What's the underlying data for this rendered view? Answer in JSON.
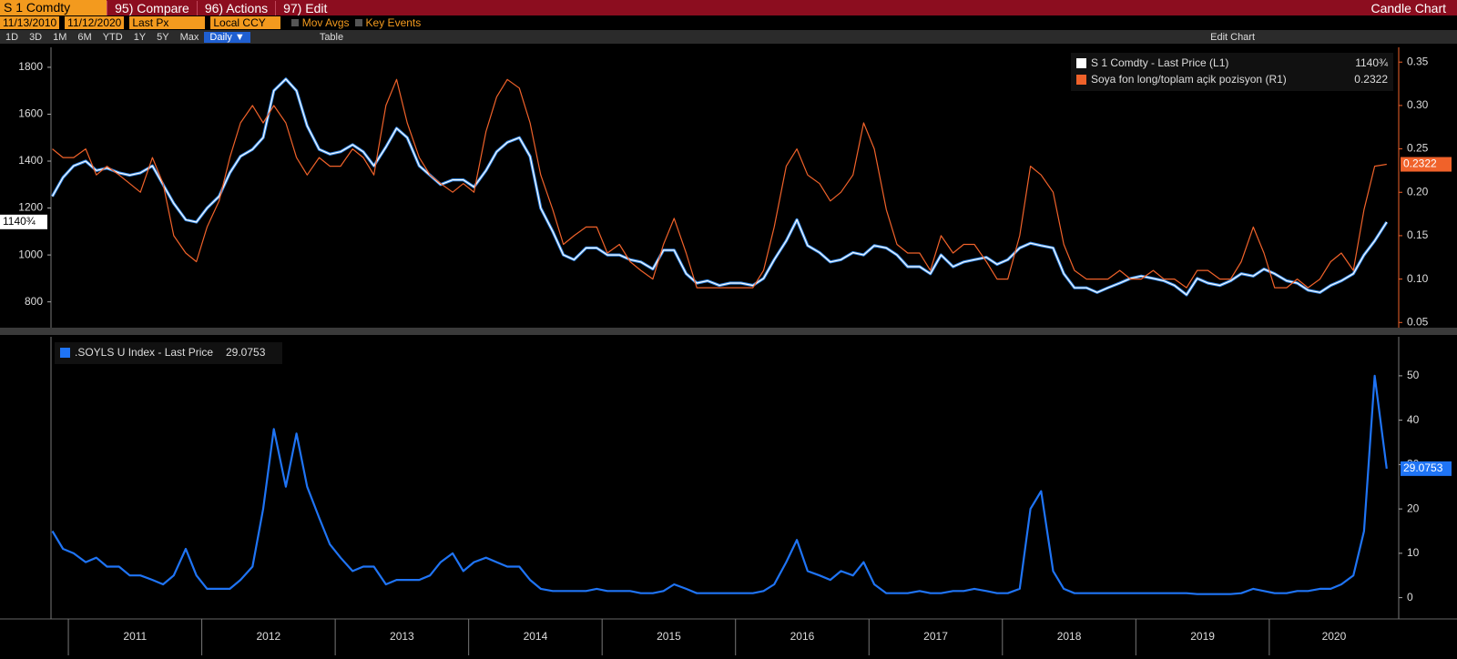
{
  "ui": {
    "security": "S 1 Comdty",
    "menu": [
      "95) Compare",
      "96) Actions",
      "97) Edit"
    ],
    "chart_kind": "Candle Chart",
    "start_date": "11/13/2010",
    "end_date": "11/12/2020",
    "field": "Last Px",
    "currency": "Local CCY",
    "options": [
      "Mov Avgs",
      "Key Events"
    ],
    "periods": [
      "1D",
      "3D",
      "1M",
      "6M",
      "YTD",
      "1Y",
      "5Y",
      "Max"
    ],
    "frequency": "Daily ▼",
    "table": "Table",
    "edit_chart": "Edit Chart"
  },
  "chart_data": [
    {
      "type": "line",
      "yaxis_position": "left",
      "legend": "upper right",
      "x": [
        2010.88,
        2010.96,
        2011.04,
        2011.13,
        2011.21,
        2011.29,
        2011.38,
        2011.46,
        2011.54,
        2011.63,
        2011.71,
        2011.79,
        2011.88,
        2011.96,
        2012.04,
        2012.13,
        2012.21,
        2012.29,
        2012.38,
        2012.46,
        2012.54,
        2012.63,
        2012.71,
        2012.79,
        2012.88,
        2012.96,
        2013.04,
        2013.13,
        2013.21,
        2013.29,
        2013.38,
        2013.46,
        2013.54,
        2013.63,
        2013.71,
        2013.79,
        2013.88,
        2013.96,
        2014.04,
        2014.13,
        2014.21,
        2014.29,
        2014.38,
        2014.46,
        2014.54,
        2014.63,
        2014.71,
        2014.79,
        2014.88,
        2014.96,
        2015.04,
        2015.13,
        2015.21,
        2015.29,
        2015.38,
        2015.46,
        2015.54,
        2015.63,
        2015.71,
        2015.79,
        2015.88,
        2015.96,
        2016.04,
        2016.13,
        2016.21,
        2016.29,
        2016.38,
        2016.46,
        2016.54,
        2016.63,
        2016.71,
        2016.79,
        2016.88,
        2016.96,
        2017.04,
        2017.13,
        2017.21,
        2017.29,
        2017.38,
        2017.46,
        2017.54,
        2017.63,
        2017.71,
        2017.79,
        2017.88,
        2017.96,
        2018.04,
        2018.13,
        2018.21,
        2018.29,
        2018.38,
        2018.46,
        2018.54,
        2018.63,
        2018.71,
        2018.79,
        2018.88,
        2018.96,
        2019.04,
        2019.13,
        2019.21,
        2019.29,
        2019.38,
        2019.46,
        2019.54,
        2019.63,
        2019.71,
        2019.79,
        2019.88,
        2019.96,
        2020.04,
        2020.13,
        2020.21,
        2020.29,
        2020.38,
        2020.46,
        2020.54,
        2020.63,
        2020.71,
        2020.79,
        2020.88
      ],
      "xlim": [
        2010.87,
        2020.97
      ],
      "ylim": [
        690,
        1885
      ],
      "yticks": [
        800,
        1000,
        1200,
        1400,
        1600,
        1800
      ],
      "y2lim": [
        0.044,
        0.367
      ],
      "y2ticks": [
        0.05,
        {
          "value": 0.1,
          "label": "0.10"
        },
        0.15,
        {
          "value": 0.2,
          "label": "0.20"
        },
        0.25,
        {
          "value": 0.3,
          "label": "0.30"
        },
        0.35
      ],
      "series": [
        {
          "name": "S 1 Comdty - Last Price (L1)",
          "color": "#ffffff",
          "outline": "#3b8eea",
          "axis": "y",
          "last": {
            "value": 1140.75,
            "label": "1140¾"
          },
          "values": [
            1250,
            1330,
            1380,
            1400,
            1360,
            1370,
            1350,
            1340,
            1350,
            1380,
            1300,
            1220,
            1150,
            1140,
            1200,
            1250,
            1350,
            1420,
            1450,
            1500,
            1700,
            1750,
            1700,
            1550,
            1450,
            1430,
            1440,
            1470,
            1440,
            1380,
            1460,
            1540,
            1500,
            1380,
            1340,
            1300,
            1320,
            1320,
            1290,
            1360,
            1440,
            1480,
            1500,
            1420,
            1200,
            1100,
            1000,
            980,
            1030,
            1030,
            1000,
            1000,
            980,
            970,
            940,
            1020,
            1020,
            920,
            880,
            890,
            870,
            880,
            880,
            870,
            900,
            980,
            1060,
            1150,
            1040,
            1010,
            970,
            980,
            1010,
            1000,
            1040,
            1030,
            1000,
            950,
            950,
            920,
            1000,
            950,
            970,
            980,
            990,
            960,
            980,
            1030,
            1050,
            1040,
            1030,
            920,
            860,
            860,
            840,
            860,
            880,
            900,
            910,
            900,
            890,
            870,
            830,
            900,
            880,
            870,
            890,
            920,
            910,
            940,
            920,
            890,
            880,
            850,
            840,
            870,
            890,
            920,
            1000,
            1060,
            1140
          ]
        },
        {
          "name": "Soya fon long/toplam açik pozisyon (R1)",
          "color": "#f0622a",
          "axis": "y2",
          "values": [
            0.25,
            0.24,
            0.24,
            0.25,
            0.22,
            0.23,
            0.22,
            0.21,
            0.2,
            0.24,
            0.21,
            0.15,
            0.13,
            0.12,
            0.16,
            0.19,
            0.24,
            0.28,
            0.3,
            0.28,
            0.3,
            0.28,
            0.24,
            0.22,
            0.24,
            0.23,
            0.23,
            0.25,
            0.24,
            0.22,
            0.3,
            0.33,
            0.28,
            0.24,
            0.22,
            0.21,
            0.2,
            0.21,
            0.2,
            0.27,
            0.31,
            0.33,
            0.32,
            0.28,
            0.22,
            0.18,
            0.14,
            0.15,
            0.16,
            0.16,
            0.13,
            0.14,
            0.12,
            0.11,
            0.1,
            0.14,
            0.17,
            0.13,
            0.09,
            0.09,
            0.09,
            0.09,
            0.09,
            0.09,
            0.11,
            0.16,
            0.23,
            0.25,
            0.22,
            0.21,
            0.19,
            0.2,
            0.22,
            0.28,
            0.25,
            0.18,
            0.14,
            0.13,
            0.13,
            0.11,
            0.15,
            0.13,
            0.14,
            0.14,
            0.12,
            0.1,
            0.1,
            0.15,
            0.23,
            0.22,
            0.2,
            0.14,
            0.11,
            0.1,
            0.1,
            0.1,
            0.11,
            0.1,
            0.1,
            0.11,
            0.1,
            0.1,
            0.09,
            0.11,
            0.11,
            0.1,
            0.1,
            0.12,
            0.16,
            0.13,
            0.09,
            0.09,
            0.1,
            0.09,
            0.1,
            0.12,
            0.13,
            0.11,
            0.18,
            0.23,
            0.2322
          ]
        }
      ]
    },
    {
      "type": "line",
      "yaxis_position": "right",
      "legend": "upper left",
      "x": [
        2010.88,
        2010.96,
        2011.04,
        2011.13,
        2011.21,
        2011.29,
        2011.38,
        2011.46,
        2011.54,
        2011.63,
        2011.71,
        2011.79,
        2011.88,
        2011.96,
        2012.04,
        2012.13,
        2012.21,
        2012.29,
        2012.38,
        2012.46,
        2012.54,
        2012.63,
        2012.71,
        2012.79,
        2012.88,
        2012.96,
        2013.04,
        2013.13,
        2013.21,
        2013.29,
        2013.38,
        2013.46,
        2013.54,
        2013.63,
        2013.71,
        2013.79,
        2013.88,
        2013.96,
        2014.04,
        2014.13,
        2014.21,
        2014.29,
        2014.38,
        2014.46,
        2014.54,
        2014.63,
        2014.71,
        2014.79,
        2014.88,
        2014.96,
        2015.04,
        2015.13,
        2015.21,
        2015.29,
        2015.38,
        2015.46,
        2015.54,
        2015.63,
        2015.71,
        2015.79,
        2015.88,
        2015.96,
        2016.04,
        2016.13,
        2016.21,
        2016.29,
        2016.38,
        2016.46,
        2016.54,
        2016.63,
        2016.71,
        2016.79,
        2016.88,
        2016.96,
        2017.04,
        2017.13,
        2017.21,
        2017.29,
        2017.38,
        2017.46,
        2017.54,
        2017.63,
        2017.71,
        2017.79,
        2017.88,
        2017.96,
        2018.04,
        2018.13,
        2018.21,
        2018.29,
        2018.38,
        2018.46,
        2018.54,
        2018.63,
        2018.71,
        2018.79,
        2018.88,
        2018.96,
        2019.04,
        2019.13,
        2019.21,
        2019.29,
        2019.38,
        2019.46,
        2019.54,
        2019.63,
        2019.71,
        2019.79,
        2019.88,
        2019.96,
        2020.04,
        2020.13,
        2020.21,
        2020.29,
        2020.38,
        2020.46,
        2020.54,
        2020.63,
        2020.71,
        2020.79,
        2020.88
      ],
      "xlim": [
        2010.87,
        2020.97
      ],
      "xticks": [
        2011,
        2012,
        2013,
        2014,
        2015,
        2016,
        2017,
        2018,
        2019,
        2020
      ],
      "ylim": [
        -4.8,
        58.8
      ],
      "yticks": [
        0,
        10,
        20,
        30,
        40,
        50
      ],
      "series": [
        {
          "name": ".SOYLS U Index - Last Price",
          "color": "#1f74f5",
          "axis": "y",
          "values": [
            15,
            11,
            10,
            8,
            9,
            7,
            7,
            5,
            5,
            4,
            3,
            5,
            11,
            5,
            2,
            2,
            2,
            4,
            7,
            20,
            38,
            25,
            37,
            25,
            18,
            12,
            9,
            6,
            7,
            7,
            3,
            4,
            4,
            4,
            5,
            8,
            10,
            6,
            8,
            9,
            8,
            7,
            7,
            4,
            2,
            1.5,
            1.5,
            1.5,
            1.5,
            2,
            1.5,
            1.5,
            1.5,
            1,
            1,
            1.5,
            3,
            2,
            1,
            1,
            1,
            1,
            1,
            1,
            1.5,
            3,
            8,
            13,
            6,
            5,
            4,
            6,
            5,
            8,
            3,
            1,
            1,
            1,
            1.5,
            1,
            1,
            1.5,
            1.5,
            2,
            1.5,
            1,
            1,
            2,
            20,
            24,
            6,
            2,
            1,
            1,
            1,
            1,
            1,
            1,
            1,
            1,
            1,
            1,
            1,
            0.8,
            0.8,
            0.8,
            0.8,
            1,
            2,
            1.5,
            1,
            1,
            1.5,
            1.5,
            2,
            2,
            3,
            5,
            15,
            50,
            29.0753
          ]
        }
      ]
    }
  ]
}
